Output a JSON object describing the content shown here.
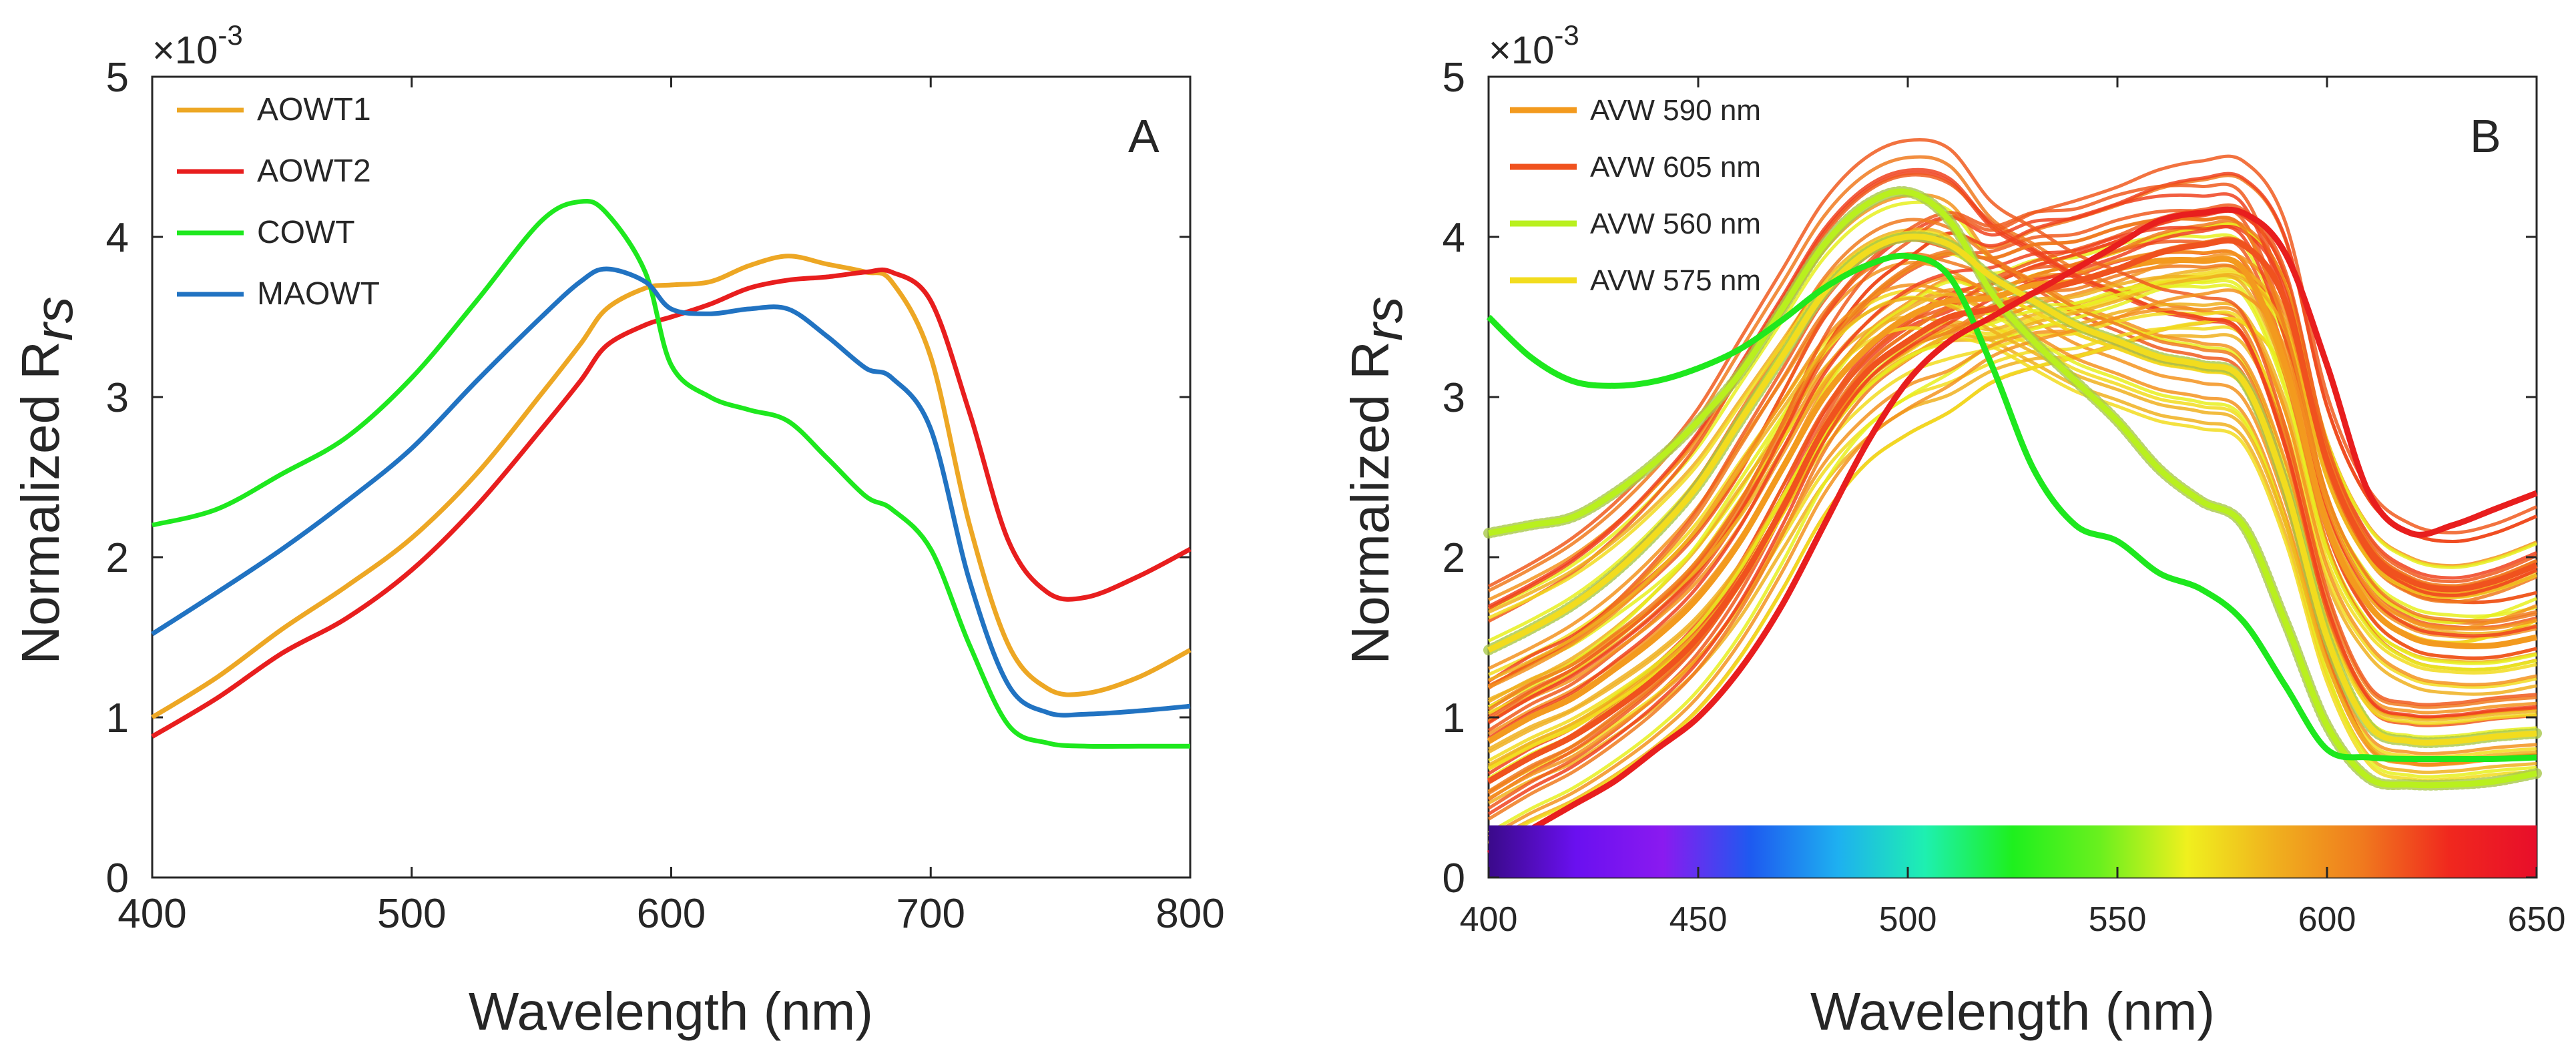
{
  "chart_data": [
    {
      "type": "line",
      "panel": "A",
      "xlabel": "Wavelength (nm)",
      "ylabel": "Normalized R",
      "ylabel_sub": "rs",
      "exponent_label": "×10",
      "exponent_power": "-3",
      "xlim": [
        400,
        800
      ],
      "ylim": [
        0,
        5
      ],
      "xticks": [
        400,
        500,
        600,
        700,
        800
      ],
      "yticks": [
        0,
        1,
        2,
        3,
        4,
        5
      ],
      "legend_position": "top-left",
      "x": [
        400,
        425,
        450,
        475,
        500,
        525,
        550,
        565,
        575,
        590,
        600,
        615,
        630,
        645,
        660,
        675,
        685,
        700,
        715,
        730,
        745,
        760,
        780,
        800
      ],
      "series": [
        {
          "name": "AOWT1",
          "color": "#EDA724",
          "values": [
            1.0,
            1.25,
            1.55,
            1.82,
            2.12,
            2.52,
            3.02,
            3.33,
            3.55,
            3.68,
            3.7,
            3.72,
            3.82,
            3.88,
            3.83,
            3.78,
            3.72,
            3.25,
            2.2,
            1.45,
            1.18,
            1.15,
            1.25,
            1.42
          ]
        },
        {
          "name": "AOWT2",
          "color": "#E81E1E",
          "values": [
            0.88,
            1.12,
            1.4,
            1.62,
            1.92,
            2.32,
            2.8,
            3.1,
            3.32,
            3.45,
            3.5,
            3.58,
            3.68,
            3.73,
            3.75,
            3.78,
            3.78,
            3.6,
            2.9,
            2.1,
            1.78,
            1.75,
            1.88,
            2.05
          ]
        },
        {
          "name": "COWT",
          "color": "#1EE81E",
          "values": [
            2.2,
            2.3,
            2.52,
            2.75,
            3.12,
            3.6,
            4.1,
            4.22,
            4.15,
            3.78,
            3.2,
            3.0,
            2.92,
            2.85,
            2.62,
            2.38,
            2.3,
            2.05,
            1.45,
            0.95,
            0.84,
            0.82,
            0.82,
            0.82
          ]
        },
        {
          "name": "MAOWT",
          "color": "#2173C2",
          "values": [
            1.52,
            1.78,
            2.05,
            2.35,
            2.68,
            3.1,
            3.5,
            3.72,
            3.8,
            3.72,
            3.55,
            3.52,
            3.55,
            3.55,
            3.38,
            3.18,
            3.12,
            2.8,
            1.85,
            1.2,
            1.03,
            1.02,
            1.04,
            1.07
          ]
        }
      ],
      "panel_label": "A"
    },
    {
      "type": "line",
      "panel": "B",
      "xlabel": "Wavelength (nm)",
      "ylabel": "Normalized R",
      "ylabel_sub": "rs",
      "exponent_label": "×10",
      "exponent_power": "-3",
      "xlim": [
        400,
        650
      ],
      "ylim": [
        0,
        5
      ],
      "xticks": [
        400,
        450,
        500,
        550,
        600,
        650
      ],
      "yticks": [
        0,
        1,
        2,
        3,
        4,
        5
      ],
      "legend_position": "top-left",
      "x": [
        400,
        410,
        420,
        430,
        440,
        450,
        460,
        470,
        480,
        490,
        500,
        510,
        520,
        530,
        540,
        550,
        560,
        570,
        580,
        590,
        600,
        610,
        620,
        630,
        640,
        650
      ],
      "series": [
        {
          "name": "AVW 590 nm",
          "color": "#F39A1E",
          "values": [
            0.85,
            1.0,
            1.12,
            1.3,
            1.5,
            1.75,
            2.1,
            2.55,
            3.0,
            3.3,
            3.5,
            3.6,
            3.62,
            3.7,
            3.72,
            3.8,
            3.85,
            3.85,
            3.8,
            3.2,
            2.2,
            1.7,
            1.5,
            1.45,
            1.45,
            1.5
          ]
        },
        {
          "name": "AVW 605 nm",
          "color": "#F0521E",
          "values": [
            0.6,
            0.75,
            0.88,
            1.05,
            1.25,
            1.5,
            1.85,
            2.3,
            2.8,
            3.15,
            3.35,
            3.5,
            3.55,
            3.65,
            3.72,
            3.8,
            3.9,
            3.95,
            3.95,
            3.6,
            2.6,
            2.05,
            1.85,
            1.8,
            1.85,
            1.95
          ]
        },
        {
          "name": "AVW 560 nm",
          "color": "#B9F01E",
          "values": [
            2.15,
            2.2,
            2.25,
            2.4,
            2.6,
            2.85,
            3.15,
            3.55,
            3.95,
            4.2,
            4.28,
            4.1,
            3.65,
            3.35,
            3.1,
            2.85,
            2.55,
            2.35,
            2.2,
            1.6,
            0.95,
            0.62,
            0.58,
            0.58,
            0.6,
            0.65
          ]
        },
        {
          "name": "AVW 575 nm",
          "color": "#F2DC1E",
          "values": [
            1.42,
            1.55,
            1.7,
            1.9,
            2.15,
            2.45,
            2.85,
            3.25,
            3.65,
            3.9,
            4.0,
            3.95,
            3.75,
            3.6,
            3.45,
            3.35,
            3.25,
            3.2,
            3.1,
            2.45,
            1.5,
            0.95,
            0.85,
            0.85,
            0.88,
            0.9
          ]
        },
        {
          "name": "",
          "color": "#1EE81E",
          "values": [
            3.5,
            3.25,
            3.1,
            3.07,
            3.1,
            3.18,
            3.3,
            3.48,
            3.68,
            3.82,
            3.88,
            3.75,
            3.2,
            2.55,
            2.2,
            2.1,
            1.9,
            1.8,
            1.6,
            1.2,
            0.8,
            0.75,
            0.74,
            0.74,
            0.74,
            0.75
          ]
        },
        {
          "name": "",
          "color": "#E81E1E",
          "values": [
            0.15,
            0.3,
            0.45,
            0.6,
            0.8,
            1.0,
            1.3,
            1.7,
            2.2,
            2.7,
            3.1,
            3.35,
            3.5,
            3.65,
            3.8,
            3.95,
            4.1,
            4.15,
            4.15,
            3.9,
            3.2,
            2.4,
            2.15,
            2.2,
            2.3,
            2.4
          ]
        }
      ],
      "color_bar": {
        "range": [
          400,
          650
        ],
        "colors": [
          "#3A0A8A",
          "#6A10F0",
          "#8A1AF0",
          "#1E5AF0",
          "#1EB0F0",
          "#1EF0B0",
          "#1EF01E",
          "#6AF01E",
          "#F0F01E",
          "#F0B01E",
          "#F07A1E",
          "#F0281E",
          "#E80E2A"
        ]
      },
      "panel_label": "B"
    }
  ]
}
